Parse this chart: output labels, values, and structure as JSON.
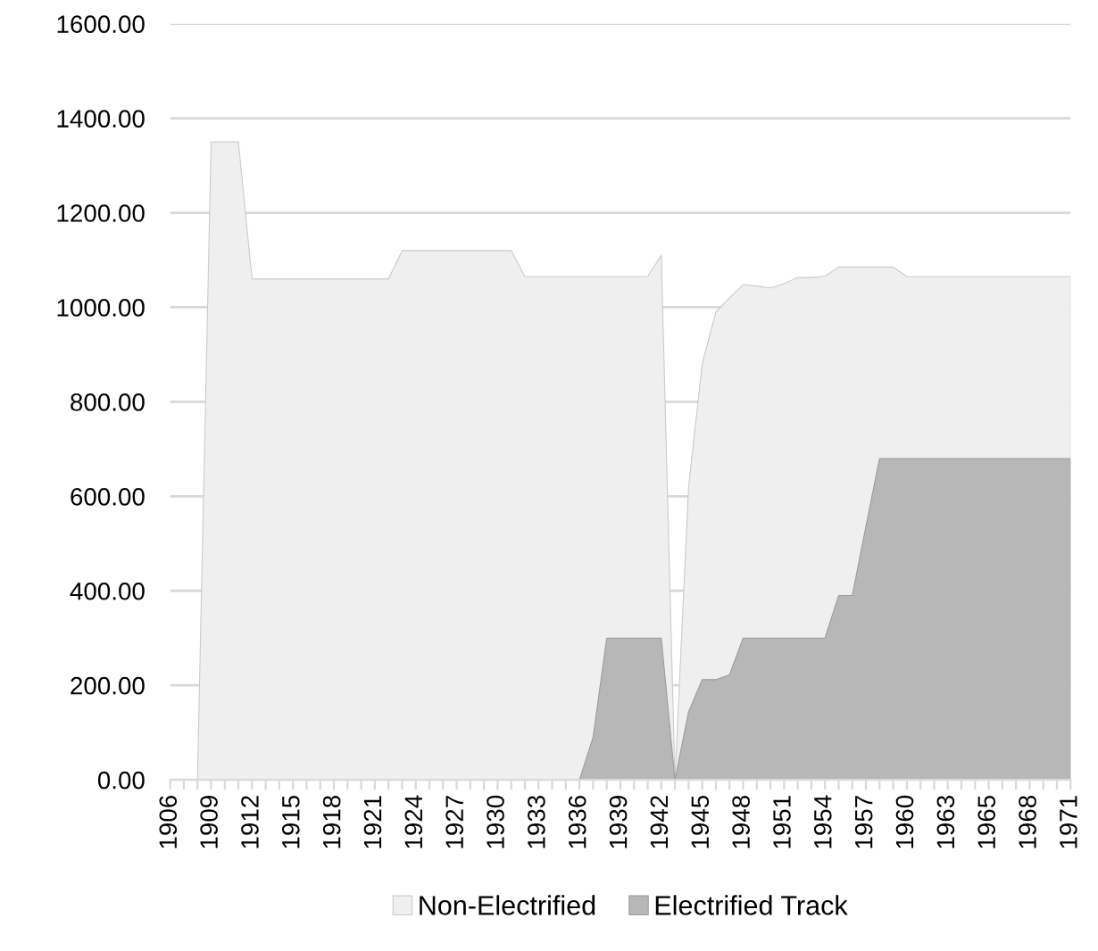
{
  "chart_data": {
    "type": "area",
    "categories": [
      "1906",
      null,
      null,
      "1909",
      null,
      null,
      "1912",
      null,
      null,
      "1915",
      null,
      null,
      "1918",
      null,
      null,
      "1921",
      null,
      null,
      "1924",
      null,
      null,
      "1927",
      null,
      null,
      "1930",
      null,
      null,
      "1933",
      null,
      null,
      "1936",
      null,
      null,
      "1939",
      null,
      null,
      "1942",
      null,
      null,
      "1945",
      null,
      null,
      "1948",
      null,
      null,
      "1951",
      null,
      null,
      "1954",
      null,
      null,
      "1957",
      null,
      null,
      "1960",
      null,
      null,
      "1963",
      null,
      null,
      "1965",
      null,
      null,
      "1968",
      null,
      null,
      "1971"
    ],
    "series": [
      {
        "name": "Non-Electrified",
        "color": "#efefef",
        "values": [
          0,
          0,
          0,
          1350,
          1350,
          1350,
          1060,
          1060,
          1060,
          1060,
          1060,
          1060,
          1060,
          1060,
          1060,
          1060,
          1060,
          1120,
          1120,
          1120,
          1120,
          1120,
          1120,
          1120,
          1120,
          1120,
          1065,
          1065,
          1065,
          1065,
          1065,
          1065,
          1065,
          1065,
          1065,
          1065,
          1110,
          0,
          620,
          880,
          990,
          1020,
          1048,
          1045,
          1041,
          1050,
          1063,
          1063,
          1066,
          1085,
          1085,
          1085,
          1085,
          1085,
          1065,
          1065,
          1065,
          1065,
          1065,
          1065,
          1065,
          1065,
          1065,
          1065,
          1065,
          1065,
          1065
        ]
      },
      {
        "name": "Electrified Track",
        "color": "#b7b7b7",
        "values": [
          0,
          0,
          0,
          0,
          0,
          0,
          0,
          0,
          0,
          0,
          0,
          0,
          0,
          0,
          0,
          0,
          0,
          0,
          0,
          0,
          0,
          0,
          0,
          0,
          0,
          0,
          0,
          0,
          0,
          0,
          0,
          90,
          300,
          300,
          300,
          300,
          300,
          0,
          144,
          212,
          212,
          222,
          300,
          300,
          300,
          300,
          300,
          300,
          300,
          390,
          390,
          536,
          680,
          680,
          680,
          680,
          680,
          680,
          680,
          680,
          680,
          680,
          680,
          680,
          680,
          680,
          680
        ]
      }
    ],
    "ylim": [
      0,
      1600
    ],
    "yticks": [
      {
        "value": 0,
        "label": "0.00"
      },
      {
        "value": 200,
        "label": "200.00"
      },
      {
        "value": 400,
        "label": "400.00"
      },
      {
        "value": 600,
        "label": "600.00"
      },
      {
        "value": 800,
        "label": "800.00"
      },
      {
        "value": 1000,
        "label": "1000.00"
      },
      {
        "value": 1200,
        "label": "1200.00"
      },
      {
        "value": 1400,
        "label": "1400.00"
      },
      {
        "value": 1600,
        "label": "1600.00"
      }
    ],
    "grid": "y",
    "legend": "bottom"
  }
}
